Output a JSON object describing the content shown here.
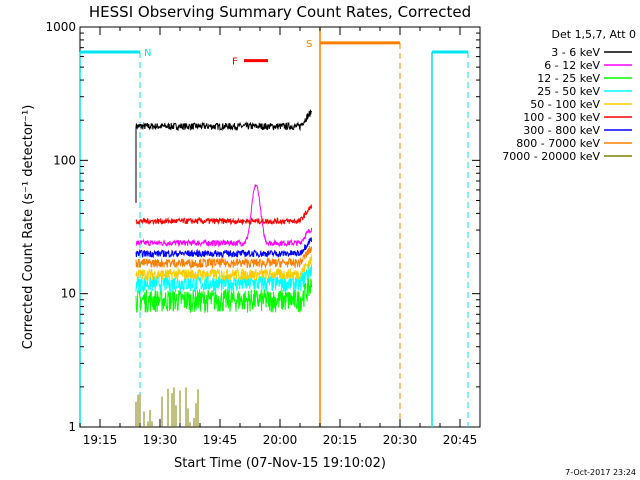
{
  "chart_data": {
    "type": "line",
    "title": "HESSI Observing Summary Count Rates, Corrected",
    "xlabel": "Start Time (07-Nov-15 19:10:02)",
    "ylabel": "Corrected Count Rate (s⁻¹ detector⁻¹)",
    "yscale": "log",
    "ylim": [
      1,
      1000
    ],
    "xlim_minutes_after_19_10": [
      0,
      100
    ],
    "x_tick_labels": [
      "19:15",
      "19:30",
      "19:45",
      "20:00",
      "20:15",
      "20:30",
      "20:45"
    ],
    "x_tick_minutes": [
      5,
      20,
      35,
      50,
      65,
      80,
      95
    ],
    "y_tick_labels": [
      "1",
      "10",
      "100",
      "1000"
    ],
    "y_tick_values": [
      1,
      10,
      100,
      1000
    ],
    "legend_title": "Det 1,5,7, Att 0",
    "legend_position": "right, outside plot",
    "data_start_minute": 14,
    "data_end_minute": 58,
    "series": [
      {
        "name": "3 - 6 keV",
        "color": "#000000",
        "level": 180,
        "noise": 0.06
      },
      {
        "name": "6 - 12 keV",
        "color": "#ff00ff",
        "level": 24,
        "noise": 0.05,
        "peak": {
          "minute": 44,
          "value": 65
        }
      },
      {
        "name": "12 - 25 keV",
        "color": "#00ff00",
        "level": 9,
        "noise": 0.2
      },
      {
        "name": "25 - 50 keV",
        "color": "#00ffff",
        "level": 12,
        "noise": 0.15
      },
      {
        "name": "50 - 100 keV",
        "color": "#ffcc00",
        "level": 14,
        "noise": 0.1
      },
      {
        "name": "100 - 300 keV",
        "color": "#ff0000",
        "level": 35,
        "noise": 0.05
      },
      {
        "name": "300 - 800 keV",
        "color": "#0000ff",
        "level": 20,
        "noise": 0.06
      },
      {
        "name": "800 - 7000 keV",
        "color": "#ff8000",
        "level": 17,
        "noise": 0.08
      },
      {
        "name": "7000 - 20000 keV",
        "color": "#808000",
        "level": 1.3,
        "noise": 0.3
      }
    ],
    "annotations": [
      {
        "label": "N",
        "color": "#00e5ee",
        "x_minute": 15,
        "y": 650,
        "note": "night"
      },
      {
        "label": "F",
        "color": "#ff0000",
        "x_minute": 42,
        "y": 560,
        "note": "flare"
      },
      {
        "label": "S",
        "color": "#ff8000",
        "x_minute": 61,
        "y": 760,
        "note": "SAA"
      }
    ]
  },
  "footer": {
    "timestamp": "7-Oct-2017 23:24"
  }
}
